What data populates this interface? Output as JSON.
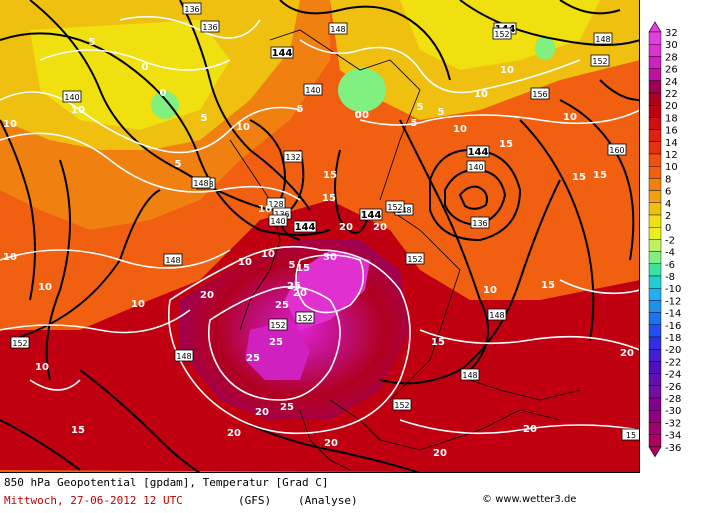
{
  "header": {
    "line1": "850 hPa Geopotential [gpdam], Temperatur [Grad C]",
    "date": "Mittwoch, 27-06-2012  12 UTC",
    "model": "(GFS)",
    "run": "(Analyse)",
    "copyright": "www.wetter3.de"
  },
  "legend": {
    "labels": [
      "32",
      "30",
      "28",
      "26",
      "24",
      "22",
      "20",
      "18",
      "16",
      "14",
      "12",
      "10",
      "8",
      "6",
      "4",
      "2",
      "0",
      "-2",
      "-4",
      "-6",
      "-8",
      "-10",
      "-12",
      "-14",
      "-16",
      "-18",
      "-20",
      "-22",
      "-24",
      "-26",
      "-28",
      "-30",
      "-32",
      "-34",
      "-36"
    ],
    "colors": [
      "#e040e0",
      "#e030d0",
      "#d020c0",
      "#c010a0",
      "#a00050",
      "#b00020",
      "#c00010",
      "#d01010",
      "#e02010",
      "#e83010",
      "#f05010",
      "#f06010",
      "#f08010",
      "#f0a010",
      "#f0c010",
      "#f0e010",
      "#e8f020",
      "#c0f060",
      "#80f080",
      "#40e0a0",
      "#20d0d0",
      "#20b0f0",
      "#2090f0",
      "#2070f0",
      "#2050f0",
      "#3030e0",
      "#4020d0",
      "#5010c0",
      "#6010b0",
      "#7010a0",
      "#800090",
      "#900080",
      "#a00070",
      "#b00060"
    ]
  },
  "geopotential_labels": [
    {
      "t": "136"
    },
    {
      "t": "136"
    },
    {
      "t": "144"
    },
    {
      "t": "144"
    },
    {
      "t": "140"
    },
    {
      "t": "140"
    },
    {
      "t": "148"
    },
    {
      "t": "148"
    },
    {
      "t": "132"
    },
    {
      "t": "128"
    },
    {
      "t": "136"
    },
    {
      "t": "140"
    },
    {
      "t": "144"
    },
    {
      "t": "144"
    },
    {
      "t": "148"
    },
    {
      "t": "148"
    },
    {
      "t": "152"
    },
    {
      "t": "152"
    },
    {
      "t": "152"
    },
    {
      "t": "156"
    },
    {
      "t": "160"
    },
    {
      "t": "144"
    },
    {
      "t": "140"
    },
    {
      "t": "136"
    },
    {
      "t": "148"
    },
    {
      "t": "152"
    },
    {
      "t": "148"
    },
    {
      "t": "148"
    },
    {
      "t": "152"
    },
    {
      "t": "148"
    },
    {
      "t": "152"
    },
    {
      "t": "148"
    },
    {
      "t": "152"
    },
    {
      "t": "15"
    },
    {
      "t": "152"
    }
  ],
  "temperature_labels": [
    {
      "t": "5"
    },
    {
      "t": "0"
    },
    {
      "t": "10"
    },
    {
      "t": "5"
    },
    {
      "t": "10"
    },
    {
      "t": "5"
    },
    {
      "t": "0"
    },
    {
      "t": "5"
    },
    {
      "t": "10"
    },
    {
      "t": "10"
    },
    {
      "t": "5"
    },
    {
      "t": "15"
    },
    {
      "t": "15"
    },
    {
      "t": "20"
    },
    {
      "t": "20"
    },
    {
      "t": "30"
    },
    {
      "t": "25"
    },
    {
      "t": "25"
    },
    {
      "t": "20"
    },
    {
      "t": "25"
    },
    {
      "t": "25"
    },
    {
      "t": "20"
    },
    {
      "t": "25"
    },
    {
      "t": "20"
    },
    {
      "t": "20"
    },
    {
      "t": "20"
    },
    {
      "t": "15"
    },
    {
      "t": "10"
    },
    {
      "t": "15"
    },
    {
      "t": "10"
    },
    {
      "t": "10"
    },
    {
      "t": "10"
    },
    {
      "t": "15"
    },
    {
      "t": "10"
    },
    {
      "t": "15"
    },
    {
      "t": "10"
    },
    {
      "t": "15"
    },
    {
      "t": "20"
    },
    {
      "t": "20"
    },
    {
      "t": "20"
    },
    {
      "t": "15"
    },
    {
      "t": "10"
    },
    {
      "t": "10"
    },
    {
      "t": "10"
    },
    {
      "t": "5"
    },
    {
      "t": "0"
    },
    {
      "t": "00"
    },
    {
      "t": "5"
    },
    {
      "t": "10"
    },
    {
      "t": "15"
    },
    {
      "t": "10"
    },
    {
      "t": "5"
    }
  ]
}
